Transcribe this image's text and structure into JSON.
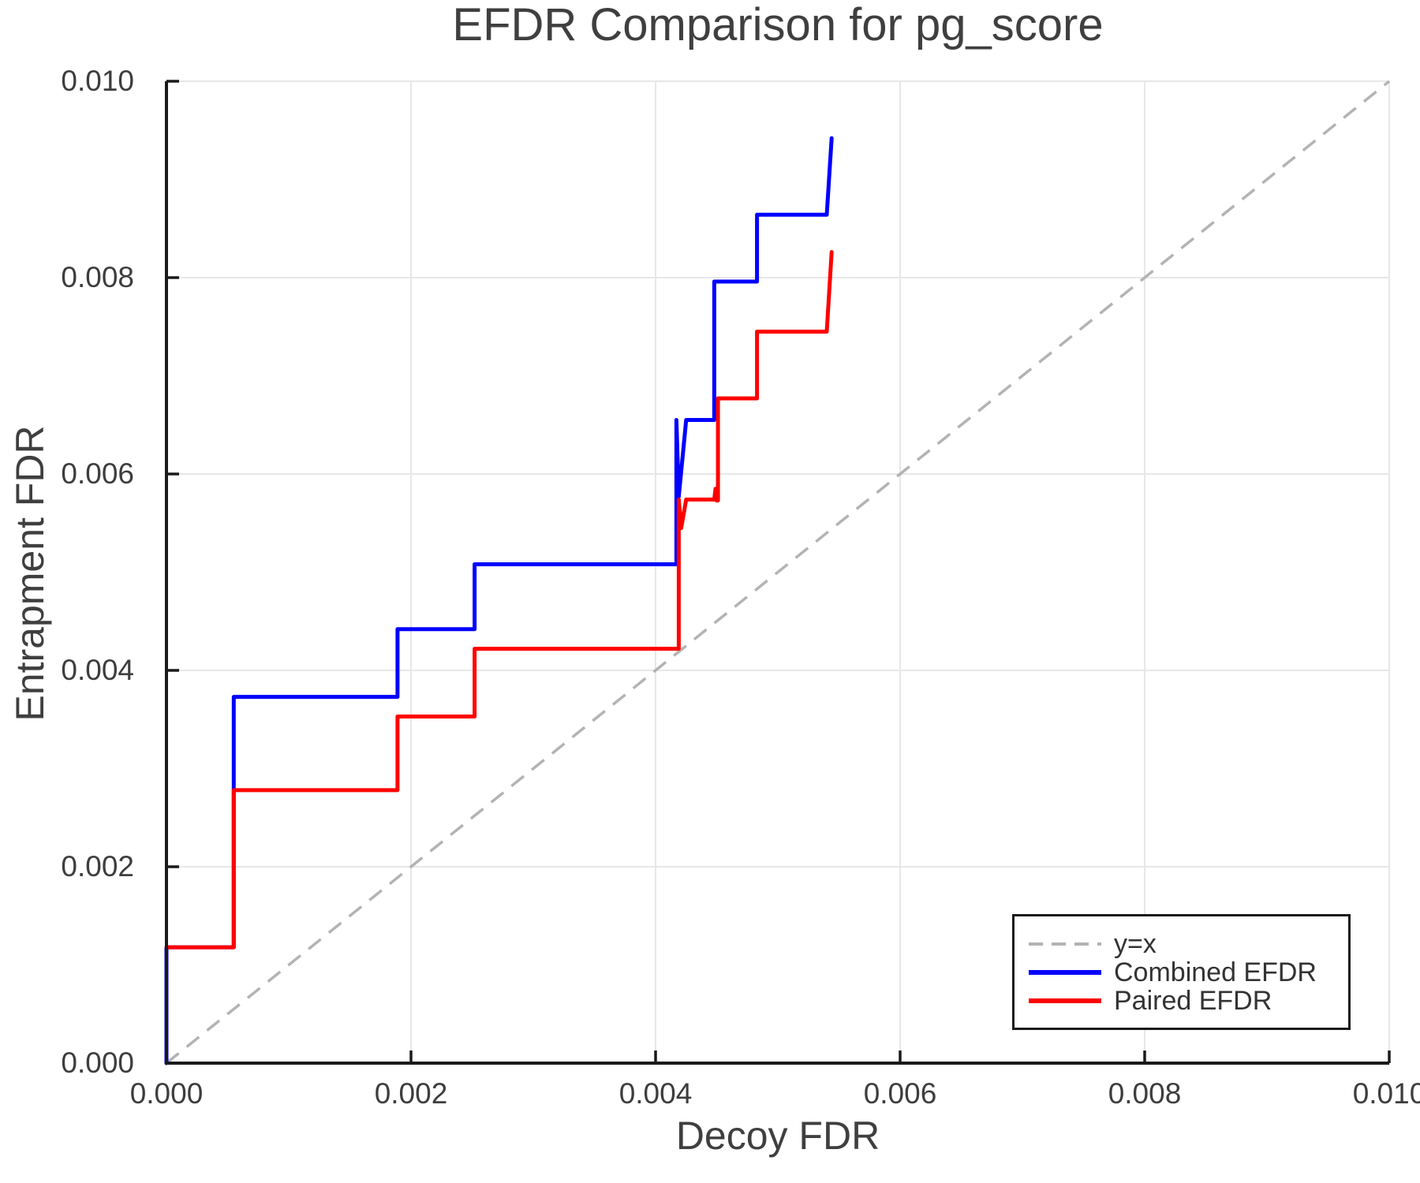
{
  "title": "EFDR Comparison for pg_score",
  "legend": {
    "items": [
      {
        "label": "y=x",
        "color": "#b3b3b3",
        "dashed": true
      },
      {
        "label": "Combined EFDR",
        "color": "#0000ff",
        "dashed": false
      },
      {
        "label": "Paired EFDR",
        "color": "#ff0000",
        "dashed": false
      }
    ]
  },
  "colors": {
    "axis": "#1a1a1a",
    "grid": "#e7e7e7",
    "reference": "#b3b3b3",
    "combined": "#0000ff",
    "paired": "#ff0000",
    "text": "#3d3d3d"
  },
  "chart_data": {
    "type": "line",
    "title": "EFDR Comparison for pg_score",
    "xlabel": "Decoy FDR",
    "ylabel": "Entrapment FDR",
    "xlim": [
      0.0,
      0.01
    ],
    "ylim": [
      0.0,
      0.01
    ],
    "xticks": [
      0.0,
      0.002,
      0.004,
      0.006,
      0.008,
      0.01
    ],
    "xtick_labels": [
      "0.000",
      "0.002",
      "0.004",
      "0.006",
      "0.008",
      "0.010"
    ],
    "yticks": [
      0.0,
      0.002,
      0.004,
      0.006,
      0.008,
      0.01
    ],
    "ytick_labels": [
      "0.000",
      "0.002",
      "0.004",
      "0.006",
      "0.008",
      "0.010"
    ],
    "grid": true,
    "legend_position": "lower right",
    "reference_line": {
      "name": "y=x",
      "style": "dashed",
      "color": "#b3b3b3",
      "from": [
        0.0,
        0.0
      ],
      "to": [
        0.01,
        0.01
      ]
    },
    "series": [
      {
        "name": "Combined EFDR",
        "color": "#0000ff",
        "step": true,
        "points": [
          [
            0.0,
            0.0
          ],
          [
            0.0,
            0.00118
          ],
          [
            0.00055,
            0.00118
          ],
          [
            0.00055,
            0.00373
          ],
          [
            0.00189,
            0.00373
          ],
          [
            0.00189,
            0.00442
          ],
          [
            0.00252,
            0.00442
          ],
          [
            0.00252,
            0.00508
          ],
          [
            0.00417,
            0.00508
          ],
          [
            0.00417,
            0.00655
          ],
          [
            0.00419,
            0.00577
          ],
          [
            0.00425,
            0.00655
          ],
          [
            0.00448,
            0.00655
          ],
          [
            0.00448,
            0.00796
          ],
          [
            0.00483,
            0.00796
          ],
          [
            0.00483,
            0.00864
          ],
          [
            0.0054,
            0.00864
          ],
          [
            0.00544,
            0.00942
          ]
        ]
      },
      {
        "name": "Paired EFDR",
        "color": "#ff0000",
        "step": true,
        "points": [
          [
            0.0,
            0.00118
          ],
          [
            0.00055,
            0.00118
          ],
          [
            0.00055,
            0.00278
          ],
          [
            0.00189,
            0.00278
          ],
          [
            0.00189,
            0.00353
          ],
          [
            0.00252,
            0.00353
          ],
          [
            0.00252,
            0.00422
          ],
          [
            0.00419,
            0.00422
          ],
          [
            0.00419,
            0.00574
          ],
          [
            0.00421,
            0.00545
          ],
          [
            0.00425,
            0.00574
          ],
          [
            0.00448,
            0.00574
          ],
          [
            0.00449,
            0.00585
          ],
          [
            0.0045,
            0.00573
          ],
          [
            0.00451,
            0.00573
          ],
          [
            0.00451,
            0.00677
          ],
          [
            0.00483,
            0.00677
          ],
          [
            0.00483,
            0.00745
          ],
          [
            0.0054,
            0.00745
          ],
          [
            0.00544,
            0.00826
          ]
        ]
      }
    ]
  }
}
